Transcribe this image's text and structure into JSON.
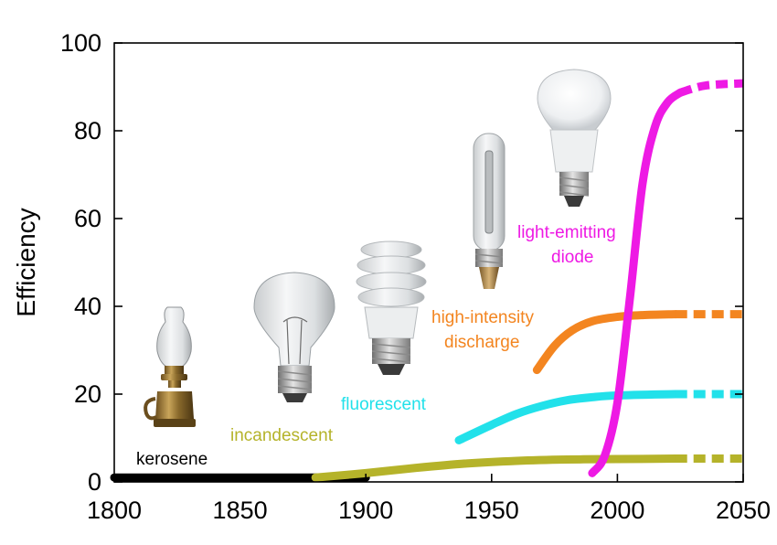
{
  "chart_data": {
    "type": "line",
    "title": "",
    "xlabel": "",
    "ylabel": "Efficiency",
    "xlim": [
      1800,
      2050
    ],
    "ylim": [
      0,
      100
    ],
    "xticks": [
      "1800",
      "1850",
      "1900",
      "1950",
      "2000",
      "2050"
    ],
    "yticks": [
      "0",
      "20",
      "40",
      "60",
      "80",
      "100"
    ],
    "series": [
      {
        "name": "kerosene",
        "color": "#000000",
        "points": [
          [
            1800,
            1
          ],
          [
            1850,
            1
          ],
          [
            1900,
            1
          ]
        ],
        "projected": []
      },
      {
        "name": "incandescent",
        "color": "#b5b32a",
        "points": [
          [
            1880,
            1
          ],
          [
            1900,
            2
          ],
          [
            1920,
            3.2
          ],
          [
            1940,
            4.2
          ],
          [
            1960,
            4.8
          ],
          [
            1980,
            5.1
          ],
          [
            2000,
            5.2
          ],
          [
            2023,
            5.3
          ]
        ],
        "projected": [
          [
            2023,
            5.3
          ],
          [
            2050,
            5.3
          ]
        ]
      },
      {
        "name": "fluorescent",
        "color": "#22e1ea",
        "points": [
          [
            1937,
            9.5
          ],
          [
            1950,
            13
          ],
          [
            1960,
            15.5
          ],
          [
            1970,
            17.3
          ],
          [
            1980,
            18.6
          ],
          [
            1990,
            19.3
          ],
          [
            2000,
            19.7
          ],
          [
            2023,
            20
          ]
        ],
        "projected": [
          [
            2023,
            20
          ],
          [
            2050,
            20
          ]
        ]
      },
      {
        "name": "high-intensity discharge",
        "color": "#f38520",
        "points": [
          [
            1968,
            25.5
          ],
          [
            1975,
            31
          ],
          [
            1982,
            34.5
          ],
          [
            1990,
            36.6
          ],
          [
            2000,
            37.6
          ],
          [
            2010,
            38
          ],
          [
            2023,
            38.2
          ]
        ],
        "projected": [
          [
            2023,
            38.2
          ],
          [
            2050,
            38.2
          ]
        ]
      },
      {
        "name": "light-emitting diode",
        "color": "#ee1ae4",
        "points": [
          [
            1990,
            2
          ],
          [
            1995,
            6
          ],
          [
            2000,
            18
          ],
          [
            2005,
            42
          ],
          [
            2010,
            68
          ],
          [
            2015,
            81
          ],
          [
            2020,
            86.5
          ],
          [
            2025,
            88.7
          ]
        ],
        "projected": [
          [
            2025,
            88.7
          ],
          [
            2035,
            90.3
          ],
          [
            2050,
            90.8
          ]
        ]
      }
    ],
    "annotations": [
      {
        "text": "kerosene",
        "color": "#000000"
      },
      {
        "text": "incandescent",
        "color": "#b5b32a"
      },
      {
        "text": "fluorescent",
        "color": "#22e1ea"
      },
      {
        "text": "high-intensity",
        "color": "#f38520"
      },
      {
        "text": "discharge",
        "color": "#f38520"
      },
      {
        "text": "light-emitting",
        "color": "#ee1ae4"
      },
      {
        "text": "diode",
        "color": "#ee1ae4"
      }
    ]
  },
  "illustrations": [
    {
      "icon": "kerosene-lamp-icon"
    },
    {
      "icon": "incandescent-bulb-icon"
    },
    {
      "icon": "cfl-bulb-icon"
    },
    {
      "icon": "hid-lamp-icon"
    },
    {
      "icon": "led-bulb-icon"
    }
  ]
}
